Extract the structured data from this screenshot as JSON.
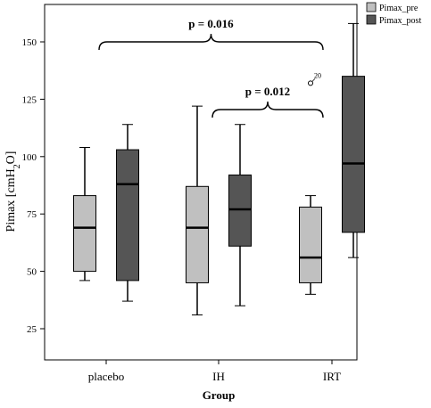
{
  "chart_data": {
    "type": "boxplot",
    "xlabel": "Group",
    "ylabel_main": "Pimax [cmH",
    "ylabel_sub": "2",
    "ylabel_end": "O]",
    "ylim": [
      5,
      165
    ],
    "yticks": [
      25,
      50,
      75,
      100,
      125,
      150
    ],
    "categories": [
      "placebo",
      "IH",
      "IRT"
    ],
    "series": [
      {
        "name": "Pimax_pre",
        "color": "#c0c0c0",
        "boxes": [
          {
            "min": 46,
            "q1": 50,
            "median": 69,
            "q3": 83,
            "max": 104
          },
          {
            "min": 31,
            "q1": 45,
            "median": 69,
            "q3": 87,
            "max": 122
          },
          {
            "min": 40,
            "q1": 45,
            "median": 56,
            "q3": 78,
            "max": 83
          }
        ]
      },
      {
        "name": "Pimax_post",
        "color": "#555555",
        "boxes": [
          {
            "min": 37,
            "q1": 46,
            "median": 88,
            "q3": 103,
            "max": 114
          },
          {
            "min": 35,
            "q1": 61,
            "median": 77,
            "q3": 92,
            "max": 114
          },
          {
            "min": 56,
            "q1": 67,
            "median": 97,
            "q3": 135,
            "max": 158
          }
        ]
      }
    ],
    "outliers": [
      {
        "category": 2,
        "series": 0,
        "value": 132,
        "label": "20"
      }
    ],
    "annotations": [
      {
        "text": "p = 0.016",
        "from": [
          0,
          0
        ],
        "to": [
          2,
          0
        ],
        "y": 157
      },
      {
        "text": "p = 0.012",
        "from": [
          1,
          0
        ],
        "to": [
          2,
          0
        ],
        "y": 127
      }
    ],
    "legend": {
      "position": "top-right"
    }
  }
}
